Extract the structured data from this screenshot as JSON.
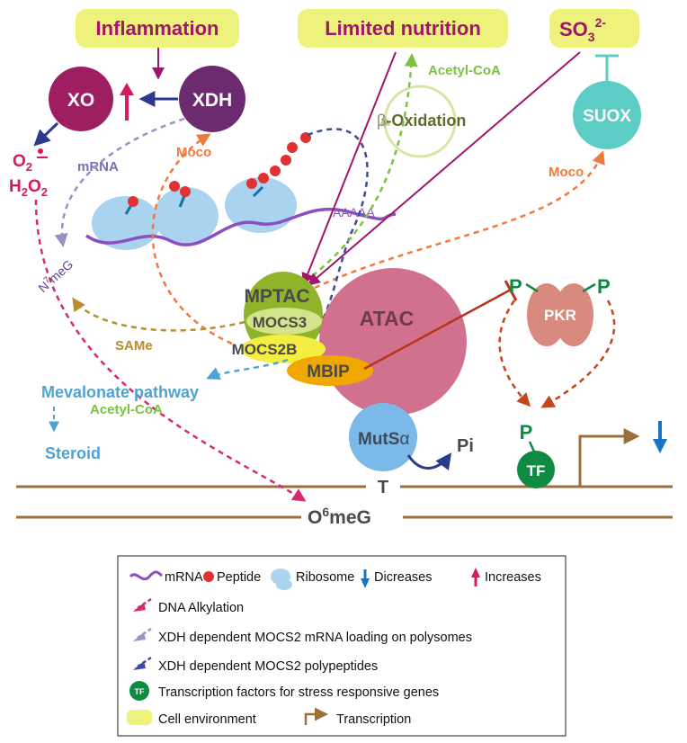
{
  "environment": {
    "inflammation": "Inflammation",
    "limited_nutrition": "Limited nutrition",
    "sulfite": "SO",
    "sulfite_sub": "3",
    "sulfite_sup": "2-"
  },
  "enzymes": {
    "xo": "XO",
    "xdh": "XDH",
    "suox": "SUOX",
    "pkr": "PKR",
    "mptac": "MPTAC",
    "mocs3": "MOCS3",
    "mocs2b": "MOCS2B",
    "mbip": "MBIP",
    "atac": "ATAC",
    "muts": "MutS",
    "muts_greek": "α",
    "tf": "TF"
  },
  "labels": {
    "o2": "O",
    "o2_sub": "2",
    "h2o2_h": "H",
    "h2o2_sub1": "2",
    "h2o2_o": "O",
    "h2o2_sub2": "2",
    "mrna": "mRNA",
    "moco_left": "Moco",
    "moco_right": "Moco",
    "beta": "β",
    "oxidation": "-Oxidation",
    "acetyl_coa_top": "Acetyl-CoA",
    "acetyl_coa_bottom": "Acetyl-CoA",
    "polya": "AAAAA",
    "n7_n": "N",
    "n7_sup": "7",
    "n7_rest": "meG",
    "same": "SAMe",
    "mevalonate": "Mevalonate pathway",
    "steroid": "Steroid",
    "pi": "Pi",
    "phospho_left": "P",
    "phospho_right": "P",
    "phospho_tf": "P",
    "dna_t": "T",
    "o6meg_o": "O",
    "o6meg_sup": "6",
    "o6meg_rest": "meG"
  },
  "legend": {
    "mrna": "mRNA",
    "peptide": "Peptide",
    "ribosome": "Ribosome",
    "decreases": "Dicreases",
    "increases": "Increases",
    "dna_alkylation": "DNA Alkylation",
    "xdh_mrna_loading": "XDH dependent MOCS2 mRNA loading on polysomes",
    "xdh_polypeptides": "XDH dependent MOCS2 polypeptides",
    "tf_glyph": "TF",
    "tf_desc": "Transcription factors for stress responsive genes",
    "cell_environment": "Cell environment",
    "transcription": "Transcription"
  },
  "colors": {
    "environment_box": "#eef27a",
    "environment_text": "#a0166b",
    "xo": "#9e1e62",
    "xdh": "#6c2b6e",
    "suox": "#5ccdc4",
    "atac": "#d1718e",
    "mptac": "#8fb42c",
    "mbip": "#f0a800",
    "muts": "#7ab9e8",
    "tf": "#0e8a43",
    "pkr": "#d98a7e",
    "ribosome": "#a9d3ee",
    "mrna": "#8b4fbf",
    "peptide": "#e03232",
    "dna": "#9b6e3b",
    "orange_dashed": "#f07a3c",
    "green_dashed": "#7cc242",
    "navy_dashed": "#3e4a9e",
    "lavender_dashed": "#9a90c6",
    "gold_dashed": "#b98c2d",
    "pink_dashed": "#d62a70",
    "blue_text": "#4fa3d4",
    "decrease_arrow": "#1a74c2",
    "increase_arrow": "#d61a5a"
  }
}
